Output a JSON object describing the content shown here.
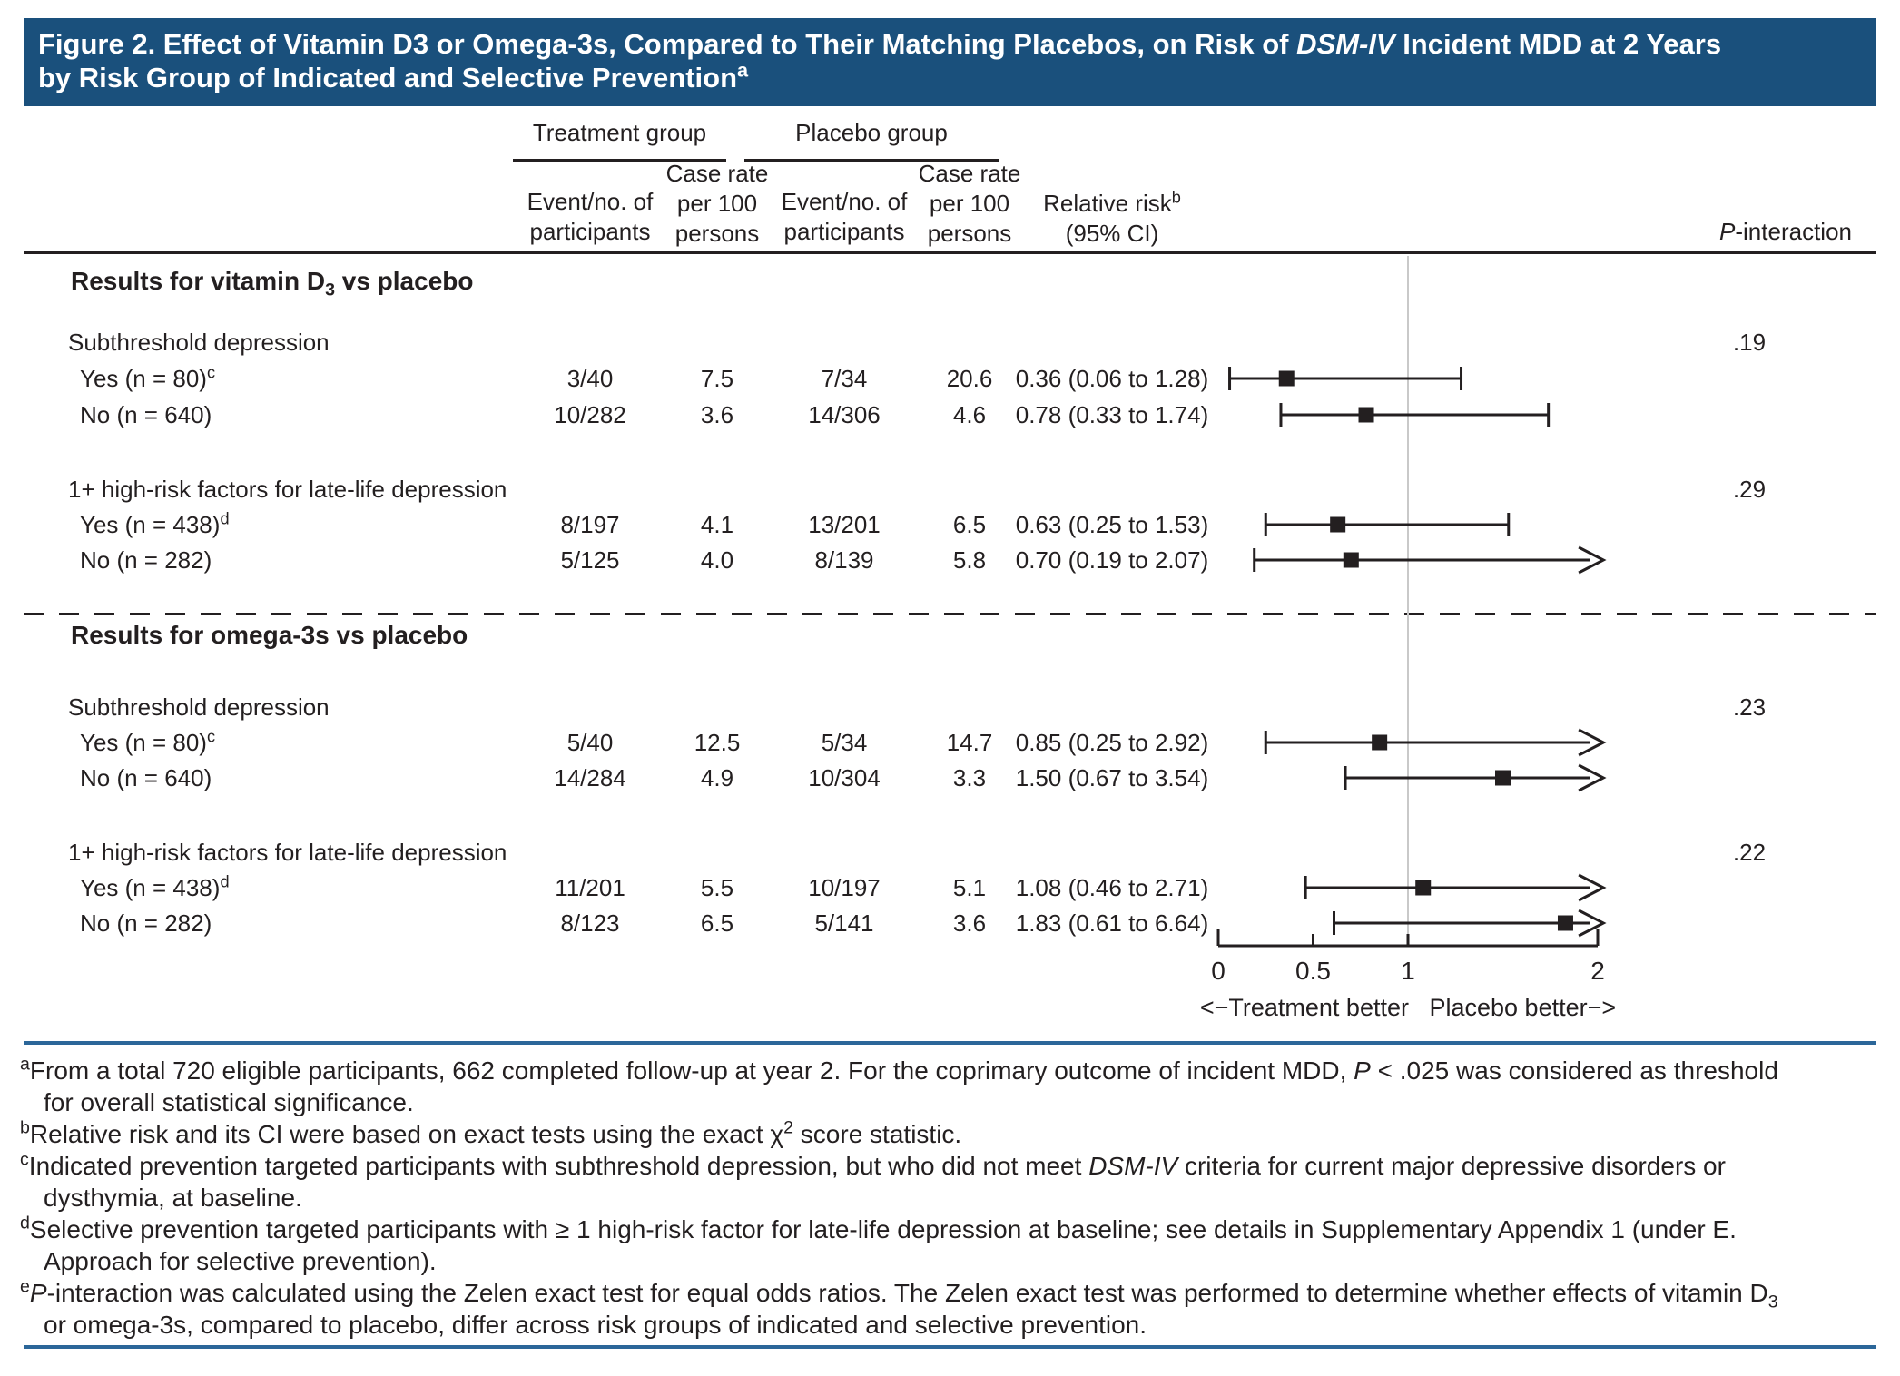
{
  "banner": {
    "lines": [
      [
        {
          "text": "Figure 2. Effect of Vitamin D3 or Omega-3s, Compared to Their Matching Placebos, on Risk of "
        },
        {
          "text": "DSM-IV",
          "italic": true
        },
        {
          "text": " Incident MDD at 2 Years"
        }
      ],
      [
        {
          "text": "by Risk Group of Indicated and Selective Prevention"
        },
        {
          "text": "a",
          "sup": true
        }
      ]
    ]
  },
  "table_headers": {
    "treatment_group": "Treatment group",
    "placebo_group": "Placebo group",
    "event_col": [
      "Event/no. of",
      "participants"
    ],
    "rate_col": [
      "Case rate",
      "per 100",
      "persons"
    ],
    "relative_risk_line1": [
      {
        "text": "Relative risk"
      },
      {
        "text": "b",
        "sup": true
      }
    ],
    "relative_risk_line2": "(95% CI)",
    "p_interaction": [
      {
        "text": "P",
        "italic": true
      },
      {
        "text": "-interaction"
      }
    ]
  },
  "axis": {
    "tick_labels": [
      "0",
      "0.5",
      "1",
      "2"
    ],
    "tick_values": [
      0,
      0.5,
      1,
      2
    ],
    "range": [
      0,
      2
    ],
    "reference_line": 1,
    "caption": "<−Treatment better   Placebo better−>"
  },
  "chart_data": {
    "type": "forest",
    "x_axis": {
      "label": "Relative risk (95% CI)",
      "ticks": [
        0,
        0.5,
        1,
        2
      ],
      "range": [
        0,
        2
      ],
      "reference_line": 1
    },
    "sections": [
      {
        "header_segments": [
          {
            "text": "Results for vitamin D"
          },
          {
            "text": "3",
            "sub": true
          },
          {
            "text": " vs placebo"
          }
        ],
        "groups": [
          {
            "label": "Subthreshold depression",
            "p_interaction": ".19",
            "rows": [
              {
                "label": "Yes (n = 80)",
                "label_sup": "c",
                "treatment_events": "3/40",
                "treatment_case_rate": "7.5",
                "placebo_events": "7/34",
                "placebo_case_rate": "20.6",
                "rr": 0.36,
                "ci_low": 0.06,
                "ci_high": 1.28,
                "rr_text": "0.36 (0.06 to 1.28)"
              },
              {
                "label": "No (n = 640)",
                "label_sup": "",
                "treatment_events": "10/282",
                "treatment_case_rate": "3.6",
                "placebo_events": "14/306",
                "placebo_case_rate": "4.6",
                "rr": 0.78,
                "ci_low": 0.33,
                "ci_high": 1.74,
                "rr_text": "0.78 (0.33 to 1.74)"
              }
            ]
          },
          {
            "label": "1+ high-risk factors for late-life depression",
            "p_interaction": ".29",
            "rows": [
              {
                "label": "Yes (n = 438)",
                "label_sup": "d",
                "treatment_events": "8/197",
                "treatment_case_rate": "4.1",
                "placebo_events": "13/201",
                "placebo_case_rate": "6.5",
                "rr": 0.63,
                "ci_low": 0.25,
                "ci_high": 1.53,
                "rr_text": "0.63 (0.25 to 1.53)"
              },
              {
                "label": "No (n = 282)",
                "label_sup": "",
                "treatment_events": "5/125",
                "treatment_case_rate": "4.0",
                "placebo_events": "8/139",
                "placebo_case_rate": "5.8",
                "rr": 0.7,
                "ci_low": 0.19,
                "ci_high": 2.07,
                "rr_text": "0.70 (0.19 to 2.07)"
              }
            ]
          }
        ]
      },
      {
        "header_segments": [
          {
            "text": "Results for omega-3s vs placebo"
          }
        ],
        "groups": [
          {
            "label": "Subthreshold depression",
            "p_interaction": ".23",
            "rows": [
              {
                "label": "Yes (n = 80)",
                "label_sup": "c",
                "treatment_events": "5/40",
                "treatment_case_rate": "12.5",
                "placebo_events": "5/34",
                "placebo_case_rate": "14.7",
                "rr": 0.85,
                "ci_low": 0.25,
                "ci_high": 2.92,
                "rr_text": "0.85 (0.25 to 2.92)"
              },
              {
                "label": "No (n = 640)",
                "label_sup": "",
                "treatment_events": "14/284",
                "treatment_case_rate": "4.9",
                "placebo_events": "10/304",
                "placebo_case_rate": "3.3",
                "rr": 1.5,
                "ci_low": 0.67,
                "ci_high": 3.54,
                "rr_text": "1.50 (0.67 to 3.54)"
              }
            ]
          },
          {
            "label": "1+ high-risk factors for late-life depression",
            "p_interaction": ".22",
            "rows": [
              {
                "label": "Yes (n = 438)",
                "label_sup": "d",
                "treatment_events": "11/201",
                "treatment_case_rate": "5.5",
                "placebo_events": "10/197",
                "placebo_case_rate": "5.1",
                "rr": 1.08,
                "ci_low": 0.46,
                "ci_high": 2.71,
                "rr_text": "1.08 (0.46 to 2.71)"
              },
              {
                "label": "No (n = 282)",
                "label_sup": "",
                "treatment_events": "8/123",
                "treatment_case_rate": "6.5",
                "placebo_events": "5/141",
                "placebo_case_rate": "3.6",
                "rr": 1.83,
                "ci_low": 0.61,
                "ci_high": 6.64,
                "rr_text": "1.83 (0.61 to 6.64)"
              }
            ]
          }
        ]
      }
    ]
  },
  "footnotes": [
    {
      "marker": "a",
      "lines": [
        [
          {
            "text": "From a total 720 eligible participants, 662 completed follow-up at year 2. For the coprimary outcome of incident MDD, "
          },
          {
            "text": "P",
            "italic": true
          },
          {
            "text": " < .025 was considered as threshold"
          }
        ],
        [
          {
            "text": "for overall statistical significance."
          }
        ]
      ]
    },
    {
      "marker": "b",
      "lines": [
        [
          {
            "text": "Relative risk and its CI were based on exact tests using the exact χ"
          },
          {
            "text": "2",
            "sup": true
          },
          {
            "text": " score statistic."
          }
        ]
      ]
    },
    {
      "marker": "c",
      "lines": [
        [
          {
            "text": "Indicated prevention targeted participants with subthreshold depression, but who did not meet "
          },
          {
            "text": "DSM-IV",
            "italic": true
          },
          {
            "text": " criteria for current major depressive disorders or"
          }
        ],
        [
          {
            "text": "dysthymia, at baseline."
          }
        ]
      ]
    },
    {
      "marker": "d",
      "lines": [
        [
          {
            "text": "Selective prevention targeted participants with ≥ 1 high-risk factor for late-life depression at baseline; see details in Supplementary Appendix 1 (under E."
          }
        ],
        [
          {
            "text": "Approach for selective prevention)."
          }
        ]
      ]
    },
    {
      "marker": "e",
      "lines": [
        [
          {
            "text": "P",
            "italic": true
          },
          {
            "text": "-interaction was calculated using the Zelen exact test for equal odds ratios. The Zelen exact test was performed to determine whether effects of vitamin D"
          },
          {
            "text": "3",
            "sub": true
          }
        ],
        [
          {
            "text": "or omega-3s, compared to placebo, differ across risk groups of indicated and selective prevention."
          }
        ]
      ]
    }
  ],
  "colors": {
    "banner_bg": "#1a507c",
    "rule_blue": "#2b6699",
    "text": "#231f20",
    "reference_line": "#c9c9c9"
  }
}
